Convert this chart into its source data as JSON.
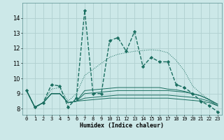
{
  "xlabel": "Humidex (Indice chaleur)",
  "background_color": "#cce8e8",
  "grid_color": "#b0d0d0",
  "line_color": "#1a6e60",
  "x_values": [
    0,
    1,
    2,
    3,
    4,
    5,
    6,
    7,
    8,
    9,
    10,
    11,
    12,
    13,
    14,
    15,
    16,
    17,
    18,
    19,
    20,
    21,
    22,
    23
  ],
  "main_series": [
    9.2,
    8.1,
    8.4,
    9.6,
    9.5,
    8.1,
    8.7,
    14.5,
    9.0,
    9.0,
    12.5,
    12.7,
    11.8,
    13.1,
    10.8,
    11.4,
    11.1,
    11.1,
    9.6,
    9.4,
    9.0,
    8.5,
    8.2,
    7.8
  ],
  "dotted_series": [
    9.2,
    8.1,
    8.4,
    9.3,
    9.4,
    8.5,
    9.0,
    10.2,
    10.6,
    11.0,
    11.4,
    11.6,
    11.7,
    11.8,
    11.85,
    11.9,
    11.85,
    11.7,
    11.2,
    10.5,
    9.5,
    9.0,
    8.6,
    8.2
  ],
  "flat_series": [
    [
      9.2,
      8.1,
      8.4,
      9.0,
      9.0,
      8.4,
      8.5,
      8.55,
      8.6,
      8.65,
      8.7,
      8.7,
      8.7,
      8.7,
      8.7,
      8.7,
      8.7,
      8.7,
      8.65,
      8.6,
      8.55,
      8.5,
      8.4,
      8.2
    ],
    [
      9.2,
      8.1,
      8.4,
      9.0,
      9.0,
      8.4,
      8.5,
      8.7,
      8.75,
      8.8,
      8.85,
      8.9,
      8.9,
      8.9,
      8.9,
      8.9,
      8.9,
      8.9,
      8.85,
      8.8,
      8.75,
      8.65,
      8.5,
      8.2
    ],
    [
      9.2,
      8.1,
      8.4,
      9.0,
      9.0,
      8.4,
      8.5,
      9.0,
      9.05,
      9.1,
      9.15,
      9.2,
      9.2,
      9.2,
      9.2,
      9.2,
      9.2,
      9.2,
      9.15,
      9.1,
      9.0,
      8.85,
      8.6,
      8.3
    ],
    [
      9.2,
      8.1,
      8.4,
      9.0,
      9.0,
      8.4,
      8.5,
      9.2,
      9.25,
      9.3,
      9.35,
      9.4,
      9.4,
      9.4,
      9.4,
      9.4,
      9.4,
      9.3,
      9.25,
      9.15,
      9.0,
      8.85,
      8.6,
      8.3
    ]
  ],
  "ylim": [
    7.6,
    15.0
  ],
  "yticks": [
    8,
    9,
    10,
    11,
    12,
    13,
    14
  ],
  "xlim": [
    -0.5,
    23.5
  ],
  "xtick_labels": [
    "0",
    "1",
    "2",
    "3",
    "4",
    "5",
    "6",
    "7",
    "8",
    "9",
    "10",
    "11",
    "12",
    "13",
    "14",
    "15",
    "16",
    "17",
    "18",
    "19",
    "20",
    "21",
    "22",
    "23"
  ]
}
